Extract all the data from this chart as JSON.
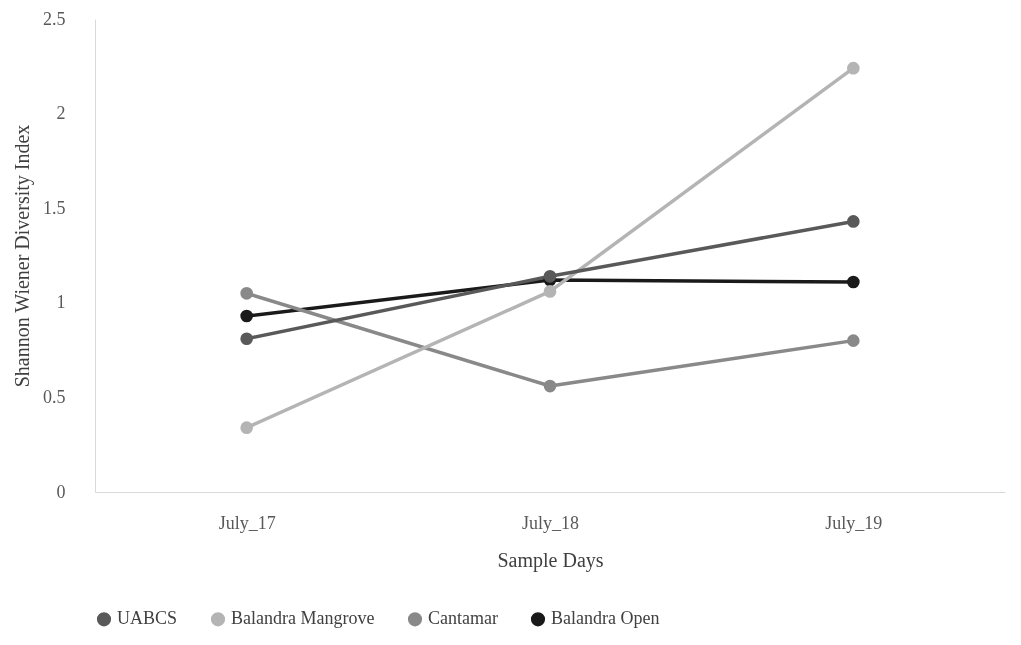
{
  "chart_data": {
    "type": "line",
    "xlabel": "Sample Days",
    "ylabel": "Shannon Wiener Diversity Index",
    "categories": [
      "July_17",
      "July_18",
      "July_19"
    ],
    "series": [
      {
        "name": "UABCS",
        "color": "#595959",
        "values": [
          0.81,
          1.14,
          1.43
        ]
      },
      {
        "name": "Balandra Mangrove",
        "color": "#b4b4b4",
        "values": [
          0.34,
          1.06,
          2.24
        ]
      },
      {
        "name": "Cantamar",
        "color": "#898989",
        "values": [
          1.05,
          0.56,
          0.8
        ]
      },
      {
        "name": "Balandra Open",
        "color": "#1a1a1a",
        "values": [
          0.93,
          1.12,
          1.11
        ]
      }
    ],
    "ylim": [
      0,
      2.5
    ],
    "yticks": [
      0,
      0.5,
      1,
      1.5,
      2,
      2.5
    ],
    "grid": false,
    "legend": "bottom",
    "marker": "circle",
    "line_style": "solid"
  }
}
